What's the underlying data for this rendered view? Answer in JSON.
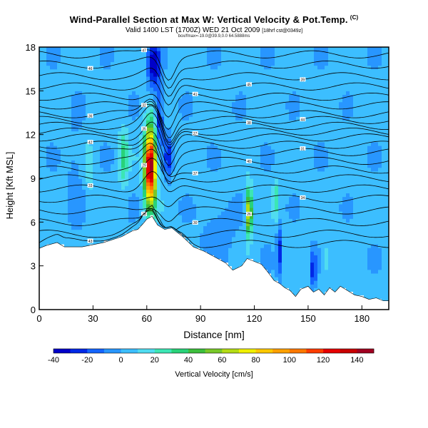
{
  "chart_data": {
    "type": "heatmap",
    "title": "Wind-Parallel Section at Max W: Vertical Velocity & Pot.Temp.",
    "title_mark": "(C)",
    "subtitle_main": "Valid 1400 LST (1700Z) WED 21 Oct 2009",
    "subtitle_small": "[18hrf cst@0349z]",
    "info_line": "box/fmax=-19.0@39.9,0.0 64.5888ms",
    "xlabel": "Distance [nm]",
    "ylabel": "Height [Kft MSL]",
    "xlim": [
      0,
      195
    ],
    "ylim": [
      0,
      18
    ],
    "xticks": [
      0,
      30,
      60,
      90,
      120,
      150,
      180
    ],
    "yticks": [
      0,
      3,
      6,
      9,
      12,
      15,
      18
    ],
    "colorbar": {
      "label": "Vertical Velocity [cm/s]",
      "range": [
        -40,
        150
      ],
      "ticks": [
        -40,
        -20,
        0,
        20,
        40,
        60,
        80,
        100,
        120,
        140
      ],
      "colors": [
        "#0000c8",
        "#0028e6",
        "#1464ff",
        "#2896ff",
        "#3cbeff",
        "#50dcf0",
        "#3ce6b4",
        "#28d278",
        "#3cbe3c",
        "#78c828",
        "#b4dc14",
        "#f0f000",
        "#ffc800",
        "#ffa000",
        "#ff7800",
        "#ff3c00",
        "#e60000",
        "#c80000",
        "#a00020"
      ]
    },
    "terrain_kft": [
      [
        0,
        4.2
      ],
      [
        4,
        4.4
      ],
      [
        10,
        4.6
      ],
      [
        14,
        4.3
      ],
      [
        24,
        4.3
      ],
      [
        36,
        4.6
      ],
      [
        46,
        5.0
      ],
      [
        52,
        5.4
      ],
      [
        55,
        5.5
      ],
      [
        58,
        5.9
      ],
      [
        60,
        6.2
      ],
      [
        63,
        6.4
      ],
      [
        66,
        5.8
      ],
      [
        70,
        5.5
      ],
      [
        74,
        5.6
      ],
      [
        80,
        5.0
      ],
      [
        86,
        4.3
      ],
      [
        92,
        4.0
      ],
      [
        98,
        3.6
      ],
      [
        104,
        3.2
      ],
      [
        108,
        2.7
      ],
      [
        113,
        3.0
      ],
      [
        116,
        3.5
      ],
      [
        120,
        3.3
      ],
      [
        124,
        3.1
      ],
      [
        128,
        2.5
      ],
      [
        131,
        2.0
      ],
      [
        134,
        1.8
      ],
      [
        137,
        1.5
      ],
      [
        140,
        1.3
      ],
      [
        143,
        0.9
      ],
      [
        146,
        1.4
      ],
      [
        150,
        1.6
      ],
      [
        153,
        1.2
      ],
      [
        156,
        1.4
      ],
      [
        159,
        1.0
      ],
      [
        162,
        1.5
      ],
      [
        165,
        1.2
      ],
      [
        168,
        1.6
      ],
      [
        172,
        1.3
      ],
      [
        176,
        1.0
      ],
      [
        180,
        0.9
      ],
      [
        184,
        0.7
      ],
      [
        188,
        0.8
      ],
      [
        192,
        0.6
      ],
      [
        195,
        0.6
      ]
    ],
    "updrafts": [
      {
        "x": 62,
        "y": 9.8,
        "sx": 3.2,
        "sy": 2.6,
        "w": 148
      },
      {
        "x": 117,
        "y": 6.7,
        "sx": 1.8,
        "sy": 1.6,
        "w": 72
      },
      {
        "x": 47,
        "y": 10.5,
        "sx": 2.4,
        "sy": 2.0,
        "w": 28
      },
      {
        "x": 28,
        "y": 9.5,
        "sx": 2.0,
        "sy": 2.4,
        "w": 10
      },
      {
        "x": 132,
        "y": 7.6,
        "sx": 1.6,
        "sy": 1.4,
        "w": 22
      },
      {
        "x": 160,
        "y": 3.5,
        "sx": 2.0,
        "sy": 1.2,
        "w": 14
      }
    ],
    "downdrafts": [
      {
        "x": 64,
        "y": 16.8,
        "sx": 3.5,
        "sy": 1.8,
        "w": -40
      },
      {
        "x": 67,
        "y": 13.0,
        "sx": 2.2,
        "sy": 2.0,
        "w": -34
      },
      {
        "x": 72,
        "y": 10.5,
        "sx": 2.2,
        "sy": 1.4,
        "w": -30
      },
      {
        "x": 134,
        "y": 4.0,
        "sx": 1.4,
        "sy": 1.8,
        "w": -30
      },
      {
        "x": 153,
        "y": 2.8,
        "sx": 1.5,
        "sy": 1.2,
        "w": -34
      },
      {
        "x": 100,
        "y": 5.2,
        "sx": 9.0,
        "sy": 2.0,
        "w": -12
      },
      {
        "x": 20,
        "y": 9.0,
        "sx": 4.0,
        "sy": 3.5,
        "w": -10
      }
    ],
    "isentropes_base_kft": [
      4.5,
      5.2,
      6.0,
      6.8,
      7.6,
      8.3,
      9.0,
      9.6,
      10.2,
      10.8,
      11.3,
      11.8,
      12.2,
      12.6,
      13.0,
      13.4,
      14.0,
      14.6,
      15.3,
      16.0,
      16.8,
      17.5
    ],
    "contour_labels": [
      "43",
      "28",
      "30",
      "26",
      "34",
      "33",
      "29",
      "37",
      "40",
      "31",
      "42",
      "35",
      "27",
      "38",
      "44",
      "36",
      "32",
      "41",
      "45",
      "39",
      "46",
      "47"
    ]
  }
}
